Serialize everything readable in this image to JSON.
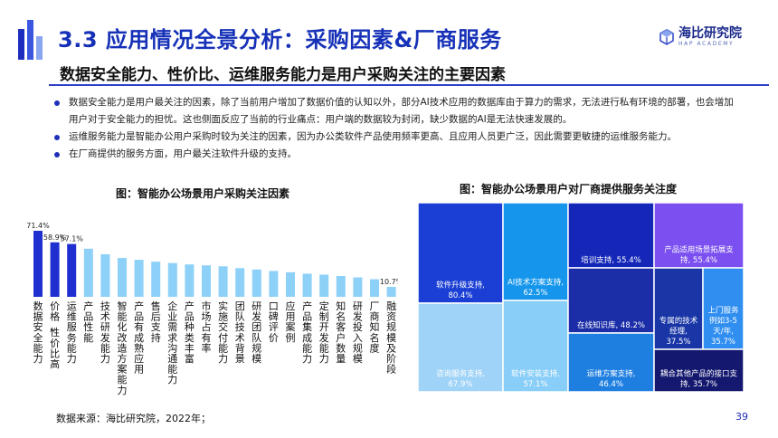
{
  "header": {
    "title": "3.3 应用情况全景分析：采购因素&厂商服务",
    "subtitle": "数据安全能力、性价比、运维服务能力是用户采购关注的主要因素",
    "logo_name": "海比研究院",
    "logo_sub": "HAP ACADEMY"
  },
  "bullets": [
    "数据安全能力是用户最关注的因素，除了当前用户增加了数据价值的认知以外，部分AI技术应用的数据库由于算力的需求，无法进行私有环境的部署，也会增加用户对于安全能力的担忧。这也侧面反应了当前的行业痛点：用户端的数据较为封闭，缺少数据的AI是无法快速发展的。",
    "运维服务能力是智能办公用户采购时较为关注的因素，因为办公类软件产品使用频率更高、且应用人员更广泛，因此需要更敏捷的运维服务能力。",
    "在厂商提供的服务方面，用户最关注软件升级的支持。"
  ],
  "footer": {
    "source": "数据来源：海比研究院，2022年；",
    "page": "39"
  },
  "colors": {
    "title_blue": "#1631b8",
    "bar_dark": "#1f2fd0",
    "bar_light": "#8dd0f8",
    "deco": [
      "#1e2fc0",
      "#3b57e0",
      "#8aa6f0"
    ]
  },
  "chart_data": [
    {
      "type": "bar",
      "title": "图：智能办公场景用户采购关注因素",
      "categories": [
        "数据安全能力",
        "价格、性价比高",
        "运维服务能力",
        "产品性能",
        "技术研发能力",
        "智能化改造方案能力",
        "产品有成熟应用",
        "售后支持",
        "企业需求沟通能力",
        "产品种类丰富",
        "市场占有率",
        "实施交付能力",
        "团队技术背景",
        "研发团队规模",
        "口碑评价",
        "应用案例",
        "产品集成能力",
        "定制开发能力",
        "知名客户数量",
        "研发投入规模",
        "厂商知名度",
        "融资规模及阶段"
      ],
      "values": [
        71.4,
        58.9,
        57.1,
        52.0,
        46.0,
        42.0,
        40.0,
        38.0,
        36.5,
        35.0,
        34.0,
        33.0,
        31.0,
        29.5,
        28.0,
        26.5,
        25.0,
        24.0,
        22.5,
        21.0,
        19.0,
        10.7
      ],
      "data_labels": [
        "71.4%",
        "58.9%",
        "57.1%",
        "",
        "",
        "",
        "",
        "",
        "",
        "",
        "",
        "",
        "",
        "",
        "",
        "",
        "",
        "",
        "",
        "",
        "",
        "10.7%"
      ],
      "highlight_count": 3,
      "ylim": [
        0,
        80
      ]
    },
    {
      "type": "treemap",
      "title": "图：智能办公场景用户对厂商提供服务关注度",
      "items": [
        {
          "name": "软件升级支持",
          "value": 80.4,
          "label": "软件升级支持,\n80.4%",
          "color": "#1b3fd4"
        },
        {
          "name": "咨询服务支持",
          "value": 67.9,
          "label": "咨询服务支持,\n67.9%",
          "color": "#9fd3f7"
        },
        {
          "name": "AI技术方案支持",
          "value": 62.5,
          "label": "AI技术方案支持,\n62.5%",
          "color": "#1596ec"
        },
        {
          "name": "软件安装支持",
          "value": 57.1,
          "label": "软件安装支持,\n57.1%",
          "color": "#88cef8"
        },
        {
          "name": "培训支持",
          "value": 55.4,
          "label": "培训支持, 55.4%",
          "color": "#1427b8"
        },
        {
          "name": "在线知识库",
          "value": 48.2,
          "label": "在线知识库, 48.2%",
          "color": "#1b2ea8"
        },
        {
          "name": "运维方案支持",
          "value": 46.4,
          "label": "运维方案支持,\n46.4%",
          "color": "#1f7fe0"
        },
        {
          "name": "产品适用场景拓展支持",
          "value": 55.4,
          "label": "产品适用场景拓展支\n持, 55.4%",
          "color": "#7b4ff0"
        },
        {
          "name": "专属的技术经理",
          "value": 37.5,
          "label": "专属的技术\n经理,\n37.5%",
          "color": "#1a36a6"
        },
        {
          "name": "上门服务例如3-5天/年",
          "value": 35.7,
          "label": "上门服务\n例如3-5\n天/年,\n35.7%",
          "color": "#2f8ef0"
        },
        {
          "name": "耦合其他产品的接口支持",
          "value": 35.7,
          "label": "耦合其他产品的接口支\n持, 35.7%",
          "color": "#14186e"
        }
      ]
    }
  ]
}
